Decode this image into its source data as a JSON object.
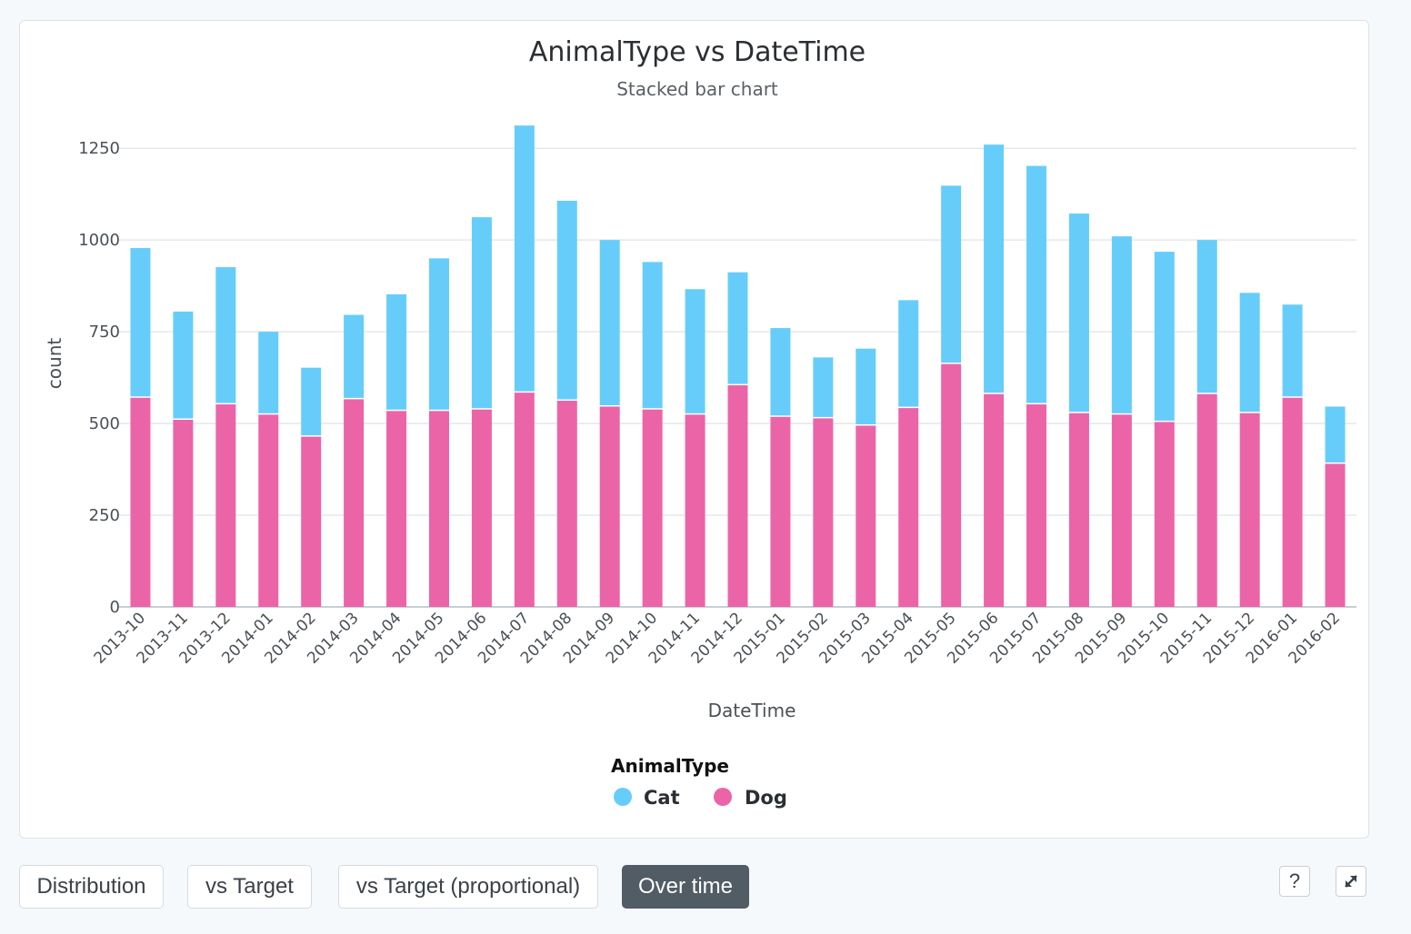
{
  "chart_data": {
    "type": "bar",
    "stacked": true,
    "title": "AnimalType vs DateTime",
    "subtitle": "Stacked bar chart",
    "xlabel": "DateTime",
    "ylabel": "count",
    "ylim": [
      0,
      1300
    ],
    "yticks": [
      0,
      250,
      500,
      750,
      1000,
      1250
    ],
    "grid": true,
    "legend_title": "AnimalType",
    "legend_position": "bottom",
    "categories": [
      "2013-10",
      "2013-11",
      "2013-12",
      "2014-01",
      "2014-02",
      "2014-03",
      "2014-04",
      "2014-05",
      "2014-06",
      "2014-07",
      "2014-08",
      "2014-09",
      "2014-10",
      "2014-11",
      "2014-12",
      "2015-01",
      "2015-02",
      "2015-03",
      "2015-04",
      "2015-05",
      "2015-06",
      "2015-07",
      "2015-08",
      "2015-09",
      "2015-10",
      "2015-11",
      "2015-12",
      "2016-01",
      "2016-02"
    ],
    "series": [
      {
        "name": "Dog",
        "color": "#ec64a8",
        "values": [
          570,
          510,
          552,
          524,
          464,
          566,
          534,
          534,
          538,
          584,
          562,
          546,
          538,
          524,
          604,
          518,
          514,
          494,
          542,
          662,
          580,
          552,
          528,
          524,
          504,
          580,
          528,
          570,
          390
        ]
      },
      {
        "name": "Cat",
        "color": "#66cdfb",
        "values": [
          408,
          295,
          374,
          226,
          188,
          230,
          318,
          416,
          524,
          728,
          545,
          454,
          402,
          342,
          308,
          242,
          166,
          210,
          294,
          486,
          680,
          650,
          544,
          486,
          464,
          420,
          328,
          254,
          156
        ]
      }
    ]
  },
  "toolbar": {
    "tabs": [
      {
        "label": "Distribution"
      },
      {
        "label": "vs Target"
      },
      {
        "label": "vs Target (proportional)"
      },
      {
        "label": "Over time"
      }
    ],
    "help_label": "?"
  }
}
